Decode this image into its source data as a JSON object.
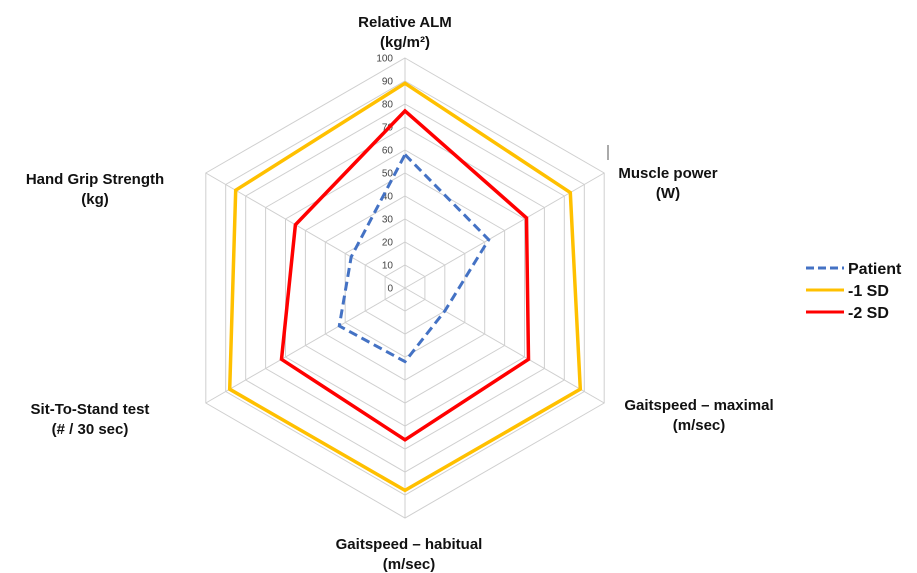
{
  "chart_data": {
    "type": "radar",
    "axes": [
      {
        "lines": [
          "Relative ALM",
          "(kg/m²)"
        ]
      },
      {
        "lines": [
          "Muscle power",
          "(W)"
        ]
      },
      {
        "lines": [
          "Gaitspeed – maximal",
          "(m/sec)"
        ]
      },
      {
        "lines": [
          "Gaitspeed – habitual",
          "(m/sec)"
        ]
      },
      {
        "lines": [
          "Sit-To-Stand test",
          "(# / 30 sec)"
        ]
      },
      {
        "lines": [
          "Hand Grip Strength",
          "(kg)"
        ]
      }
    ],
    "r_range": [
      0,
      100
    ],
    "ticks": [
      0,
      10,
      20,
      30,
      40,
      50,
      60,
      70,
      80,
      90,
      100
    ],
    "grid": true,
    "legend_position": "right",
    "series": [
      {
        "name": "Patient",
        "color": "#4472c4",
        "style": "dashed",
        "values": [
          58,
          42,
          20,
          32,
          33,
          27
        ]
      },
      {
        "name": "-1 SD",
        "color": "#ffc000",
        "style": "solid",
        "values": [
          89,
          83,
          88,
          88,
          88,
          85
        ]
      },
      {
        "name": "-2 SD",
        "color": "#ff0000",
        "style": "solid",
        "values": [
          77,
          61,
          62,
          66,
          62,
          55
        ]
      }
    ]
  }
}
